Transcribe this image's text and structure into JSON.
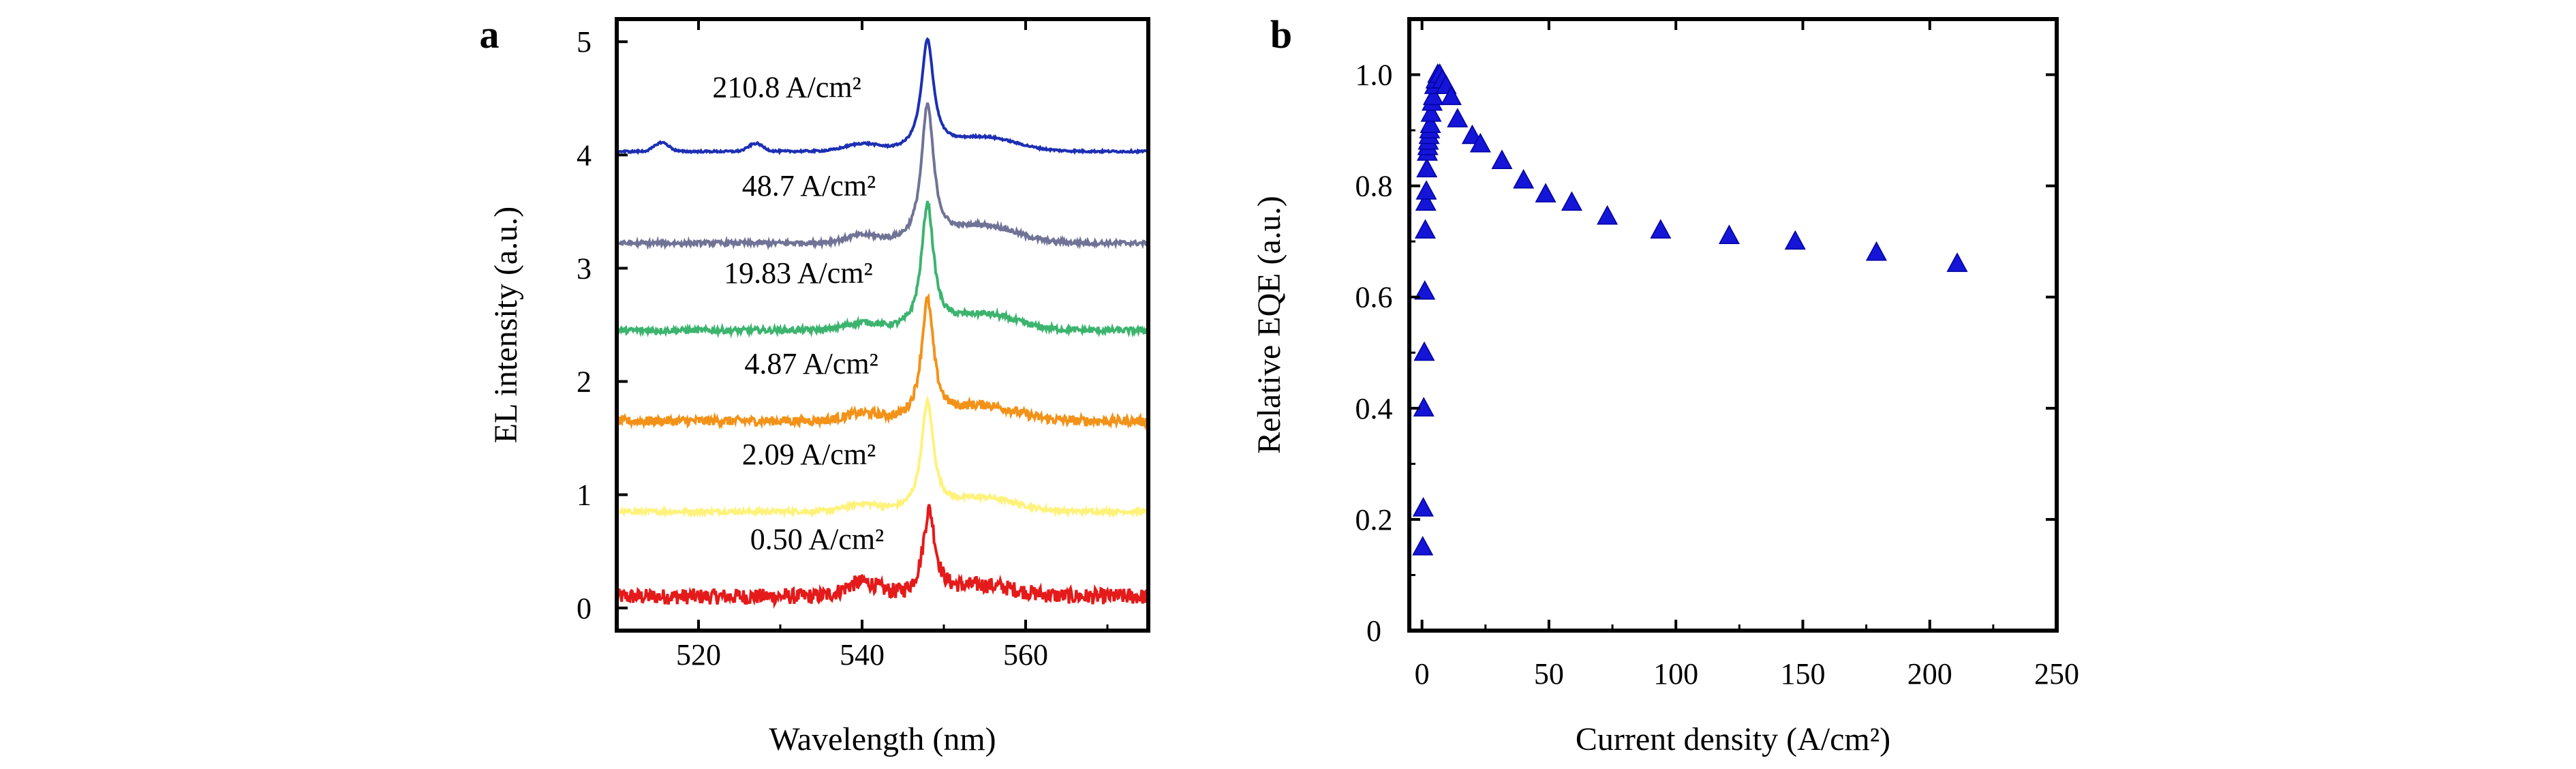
{
  "chart_data": [
    {
      "panel": "a",
      "type": "line",
      "xlabel": "Wavelength (nm)",
      "ylabel": "EL intensity (a.u.)",
      "xlim": [
        510,
        575
      ],
      "ylim": [
        -0.2,
        5.2
      ],
      "xticks": [
        520,
        540,
        560
      ],
      "yticks": [
        0,
        1,
        2,
        3,
        4,
        5
      ],
      "grid": false,
      "series": [
        {
          "label": "0.50 A/cm²",
          "color": "#e51a1a",
          "baseline": 0.1,
          "peak_x": 548.2,
          "peak_height": 0.75,
          "noise": 0.07
        },
        {
          "label": "2.09 A/cm²",
          "color": "#fff27a",
          "baseline": 0.85,
          "peak_x": 548.0,
          "peak_height": 0.95,
          "noise": 0.02
        },
        {
          "label": "4.87 A/cm²",
          "color": "#f39218",
          "baseline": 1.65,
          "peak_x": 548.0,
          "peak_height": 1.05,
          "noise": 0.04
        },
        {
          "label": "19.83 A/cm²",
          "color": "#3cb46e",
          "baseline": 2.45,
          "peak_x": 548.0,
          "peak_height": 1.1,
          "noise": 0.025
        },
        {
          "label": "48.7 A/cm²",
          "color": "#707396",
          "baseline": 3.22,
          "peak_x": 548.0,
          "peak_height": 1.2,
          "noise": 0.02
        },
        {
          "label": "210.8 A/cm²",
          "color": "#1c2fb4",
          "baseline": 4.03,
          "peak_x": 548.0,
          "peak_height": 0.97,
          "noise": 0.008
        }
      ],
      "label_positions_x": [
        534.5,
        533.5,
        533.8,
        532.2,
        533.5,
        530.8
      ]
    },
    {
      "panel": "b",
      "type": "scatter",
      "xlabel": "Current density (A/cm²)",
      "ylabel": "Relative EQE (a.u.)",
      "xlim": [
        -5,
        250
      ],
      "ylim": [
        0,
        1.1
      ],
      "xticks": [
        0,
        50,
        100,
        150,
        200,
        250
      ],
      "yticks": [
        0,
        0.2,
        0.4,
        0.6,
        0.8,
        1.0
      ],
      "ytick_labels": [
        "0",
        "0.2",
        "0.4",
        "0.6",
        "0.8",
        "1.0"
      ],
      "grid": false,
      "marker": "triangle",
      "color": "#1515d8",
      "x": [
        0.3,
        0.5,
        0.7,
        0.9,
        1.1,
        1.3,
        1.5,
        1.7,
        1.9,
        2.1,
        2.3,
        2.5,
        2.8,
        3.0,
        3.3,
        3.6,
        4.0,
        4.5,
        5.0,
        5.5,
        6.2,
        7.0,
        8.0,
        9.5,
        11.5,
        14.0,
        19.8,
        23.0,
        31.5,
        40.0,
        48.7,
        59.0,
        73.0,
        94.0,
        121.0,
        147.0,
        179.0,
        210.8
      ],
      "y": [
        0.15,
        0.22,
        0.4,
        0.5,
        0.61,
        0.72,
        0.77,
        0.79,
        0.83,
        0.86,
        0.87,
        0.88,
        0.89,
        0.9,
        0.91,
        0.93,
        0.95,
        0.96,
        0.98,
        0.99,
        1.0,
        1.0,
        0.99,
        0.98,
        0.96,
        0.92,
        0.89,
        0.875,
        0.845,
        0.81,
        0.785,
        0.77,
        0.745,
        0.72,
        0.71,
        0.7,
        0.68,
        0.66
      ]
    }
  ]
}
